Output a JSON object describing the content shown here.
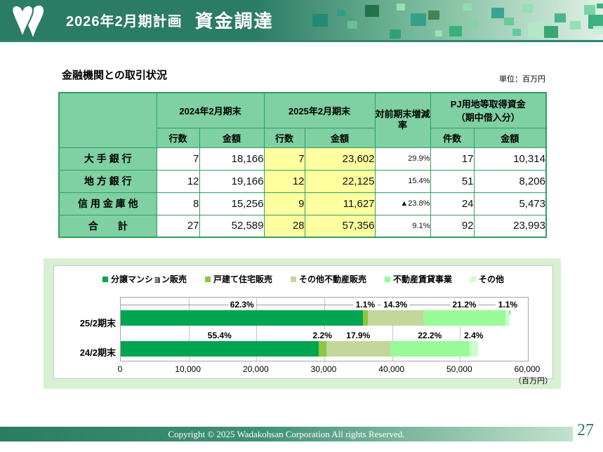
{
  "header": {
    "title_left": "2026年2月期計画",
    "title_right": "資金調達"
  },
  "table": {
    "section_title": "金融機関との取引状況",
    "unit_note": "単位：百万円",
    "col_groups": {
      "g2024": "2024年2月期末",
      "g2025": "2025年2月期末",
      "rate": "対前期末増減率",
      "pj_line1": "PJ用地等取得資金",
      "pj_line2": "（期中借入分）"
    },
    "sub_headers": {
      "rows": "行数",
      "amount": "金額",
      "count": "件数"
    },
    "rows": [
      {
        "label": "大 手 銀 行",
        "c2024_rows": "7",
        "c2024_amount": "18,166",
        "c2025_rows": "7",
        "c2025_amount": "23,602",
        "rate": "29.9%",
        "pj_count": "17",
        "pj_amount": "10,314"
      },
      {
        "label": "地 方 銀 行",
        "c2024_rows": "12",
        "c2024_amount": "19,166",
        "c2025_rows": "12",
        "c2025_amount": "22,125",
        "rate": "15.4%",
        "pj_count": "51",
        "pj_amount": "8,206"
      },
      {
        "label": "信 用 金 庫 他",
        "c2024_rows": "8",
        "c2024_amount": "15,256",
        "c2025_rows": "9",
        "c2025_amount": "11,627",
        "rate": "▲23.8%",
        "pj_count": "24",
        "pj_amount": "5,473"
      },
      {
        "label": "合　　計",
        "c2024_rows": "27",
        "c2024_amount": "52,589",
        "c2025_rows": "28",
        "c2025_amount": "57,356",
        "rate": "9.1%",
        "pj_count": "92",
        "pj_amount": "23,993"
      }
    ]
  },
  "chart_data": {
    "type": "bar",
    "orientation": "horizontal-stacked",
    "categories": [
      "25/2期末",
      "24/2期末"
    ],
    "totals": [
      57356,
      52589
    ],
    "x_max": 60000,
    "x_ticks": [
      "0",
      "10,000",
      "20,000",
      "30,000",
      "40,000",
      "50,000",
      "60,000"
    ],
    "unit_label": "（百万円）",
    "legend_position": "top",
    "series": [
      {
        "name": "分譲マンション販売",
        "color": "#00A550",
        "percents": [
          62.3,
          55.4
        ]
      },
      {
        "name": "戸建て住宅販売",
        "color": "#8DC63F",
        "percents": [
          1.1,
          2.2
        ]
      },
      {
        "name": "その他不動産販売",
        "color": "#C3D69B",
        "percents": [
          14.3,
          17.9
        ]
      },
      {
        "name": "不動産賃貸事業",
        "color": "#98FB98",
        "percents": [
          21.2,
          22.2
        ]
      },
      {
        "name": "その他",
        "color": "#CCFFCC",
        "percents": [
          1.1,
          2.4
        ]
      }
    ],
    "bar_labels": [
      [
        "62.3%",
        "1.1%",
        "14.3%",
        "21.2%",
        "1.1%"
      ],
      [
        "55.4%",
        "2.2%",
        "17.9%",
        "22.2%",
        "2.4%"
      ]
    ]
  },
  "footer": {
    "copyright": "Copyright © 2025  Wadakohsan Corporation All rights Reserved.",
    "page_number": "27"
  }
}
